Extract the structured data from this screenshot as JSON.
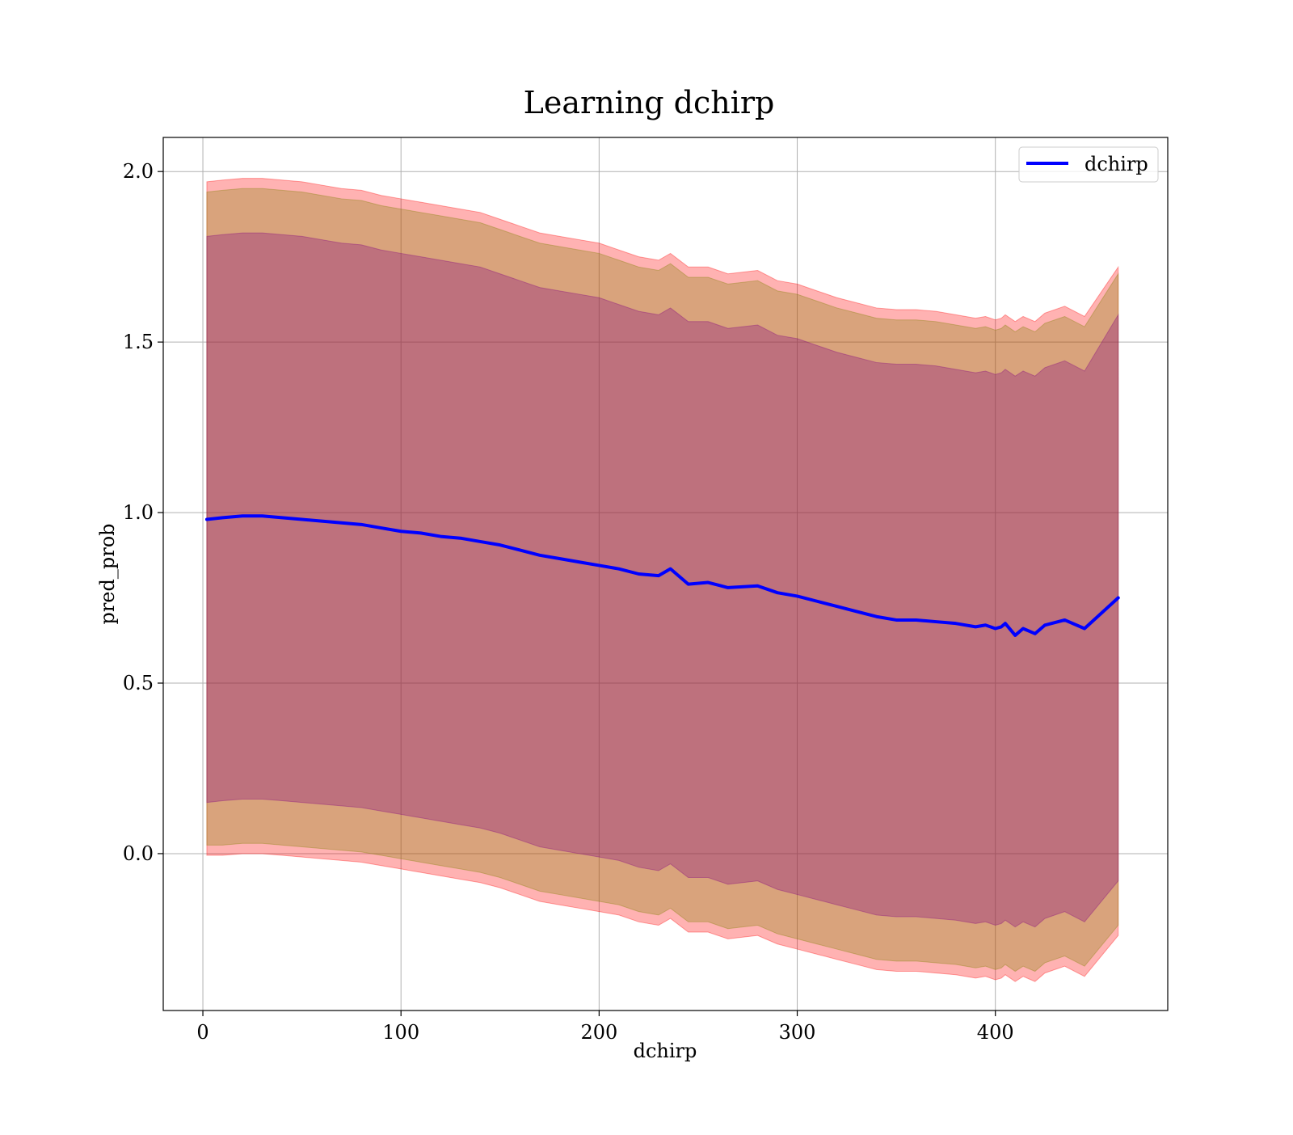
{
  "chart_data": {
    "type": "line",
    "title": "Learning dchirp",
    "xlabel": "dchirp",
    "ylabel": "pred_prob",
    "xlim": [
      -20,
      487
    ],
    "ylim": [
      -0.46,
      2.1
    ],
    "xticks": [
      0,
      100,
      200,
      300,
      400
    ],
    "yticks": [
      0.0,
      0.5,
      1.0,
      1.5,
      2.0
    ],
    "xtick_labels": [
      "0",
      "100",
      "200",
      "300",
      "400"
    ],
    "ytick_labels": [
      "0.0",
      "0.5",
      "1.0",
      "1.5",
      "2.0"
    ],
    "grid": true,
    "legend_position": "top-right",
    "series": [
      {
        "name": "dchirp",
        "color": "#0000ff",
        "x": [
          2,
          10,
          20,
          30,
          40,
          50,
          60,
          70,
          80,
          90,
          100,
          110,
          120,
          130,
          140,
          150,
          160,
          170,
          180,
          190,
          200,
          210,
          220,
          230,
          236,
          245,
          255,
          265,
          280,
          290,
          300,
          310,
          320,
          330,
          340,
          350,
          360,
          370,
          380,
          390,
          395,
          400,
          403,
          405,
          410,
          414,
          420,
          425,
          435,
          445,
          462
        ],
        "y": [
          0.98,
          0.985,
          0.99,
          0.99,
          0.985,
          0.98,
          0.975,
          0.97,
          0.965,
          0.955,
          0.945,
          0.94,
          0.93,
          0.925,
          0.915,
          0.905,
          0.89,
          0.875,
          0.865,
          0.855,
          0.845,
          0.835,
          0.82,
          0.815,
          0.835,
          0.79,
          0.795,
          0.78,
          0.785,
          0.765,
          0.755,
          0.74,
          0.725,
          0.71,
          0.695,
          0.685,
          0.685,
          0.68,
          0.675,
          0.665,
          0.67,
          0.66,
          0.665,
          0.675,
          0.64,
          0.66,
          0.645,
          0.67,
          0.685,
          0.66,
          0.75
        ]
      }
    ],
    "bands": [
      {
        "color": "#ff0000",
        "opacity": 0.3,
        "upper": [
          1.97,
          1.975,
          1.98,
          1.98,
          1.975,
          1.97,
          1.96,
          1.95,
          1.945,
          1.93,
          1.92,
          1.91,
          1.9,
          1.89,
          1.88,
          1.86,
          1.84,
          1.82,
          1.81,
          1.8,
          1.79,
          1.77,
          1.75,
          1.74,
          1.76,
          1.72,
          1.72,
          1.7,
          1.71,
          1.68,
          1.67,
          1.65,
          1.63,
          1.615,
          1.6,
          1.595,
          1.595,
          1.59,
          1.58,
          1.57,
          1.575,
          1.565,
          1.57,
          1.58,
          1.56,
          1.575,
          1.56,
          1.585,
          1.605,
          1.575,
          1.72
        ],
        "lower": [
          -0.005,
          -0.005,
          0.0,
          0.0,
          -0.005,
          -0.01,
          -0.015,
          -0.02,
          -0.025,
          -0.035,
          -0.045,
          -0.055,
          -0.065,
          -0.075,
          -0.085,
          -0.1,
          -0.12,
          -0.14,
          -0.15,
          -0.16,
          -0.17,
          -0.18,
          -0.2,
          -0.21,
          -0.19,
          -0.23,
          -0.23,
          -0.25,
          -0.24,
          -0.265,
          -0.28,
          -0.295,
          -0.31,
          -0.325,
          -0.34,
          -0.345,
          -0.345,
          -0.35,
          -0.355,
          -0.365,
          -0.36,
          -0.37,
          -0.365,
          -0.355,
          -0.375,
          -0.36,
          -0.375,
          -0.35,
          -0.33,
          -0.36,
          -0.24
        ]
      },
      {
        "color": "#808000",
        "opacity": 0.3,
        "upper": [
          1.94,
          1.945,
          1.95,
          1.95,
          1.945,
          1.94,
          1.93,
          1.92,
          1.915,
          1.9,
          1.89,
          1.88,
          1.87,
          1.86,
          1.85,
          1.83,
          1.81,
          1.79,
          1.78,
          1.77,
          1.76,
          1.74,
          1.72,
          1.71,
          1.73,
          1.69,
          1.69,
          1.67,
          1.68,
          1.65,
          1.64,
          1.62,
          1.6,
          1.585,
          1.57,
          1.565,
          1.565,
          1.56,
          1.55,
          1.54,
          1.545,
          1.535,
          1.54,
          1.55,
          1.53,
          1.545,
          1.53,
          1.555,
          1.575,
          1.545,
          1.7
        ],
        "lower": [
          0.025,
          0.025,
          0.03,
          0.03,
          0.025,
          0.02,
          0.015,
          0.01,
          0.005,
          -0.005,
          -0.015,
          -0.025,
          -0.035,
          -0.045,
          -0.055,
          -0.07,
          -0.09,
          -0.11,
          -0.12,
          -0.13,
          -0.14,
          -0.15,
          -0.17,
          -0.18,
          -0.16,
          -0.2,
          -0.2,
          -0.22,
          -0.21,
          -0.235,
          -0.25,
          -0.265,
          -0.28,
          -0.295,
          -0.31,
          -0.315,
          -0.315,
          -0.32,
          -0.325,
          -0.335,
          -0.33,
          -0.34,
          -0.335,
          -0.325,
          -0.345,
          -0.33,
          -0.345,
          -0.32,
          -0.3,
          -0.33,
          -0.21
        ]
      },
      {
        "color": "#800080",
        "opacity": 0.3,
        "upper": [
          1.81,
          1.815,
          1.82,
          1.82,
          1.815,
          1.81,
          1.8,
          1.79,
          1.785,
          1.77,
          1.76,
          1.75,
          1.74,
          1.73,
          1.72,
          1.7,
          1.68,
          1.66,
          1.65,
          1.64,
          1.63,
          1.61,
          1.59,
          1.58,
          1.6,
          1.56,
          1.56,
          1.54,
          1.55,
          1.52,
          1.51,
          1.49,
          1.47,
          1.455,
          1.44,
          1.435,
          1.435,
          1.43,
          1.42,
          1.41,
          1.415,
          1.405,
          1.41,
          1.42,
          1.4,
          1.415,
          1.4,
          1.425,
          1.445,
          1.415,
          1.58
        ],
        "lower": [
          0.15,
          0.155,
          0.16,
          0.16,
          0.155,
          0.15,
          0.145,
          0.14,
          0.135,
          0.125,
          0.115,
          0.105,
          0.095,
          0.085,
          0.075,
          0.06,
          0.04,
          0.02,
          0.01,
          0.0,
          -0.01,
          -0.02,
          -0.04,
          -0.05,
          -0.03,
          -0.07,
          -0.07,
          -0.09,
          -0.08,
          -0.105,
          -0.12,
          -0.135,
          -0.15,
          -0.165,
          -0.18,
          -0.185,
          -0.185,
          -0.19,
          -0.195,
          -0.205,
          -0.2,
          -0.21,
          -0.205,
          -0.195,
          -0.215,
          -0.2,
          -0.215,
          -0.19,
          -0.17,
          -0.2,
          -0.08
        ]
      }
    ]
  }
}
